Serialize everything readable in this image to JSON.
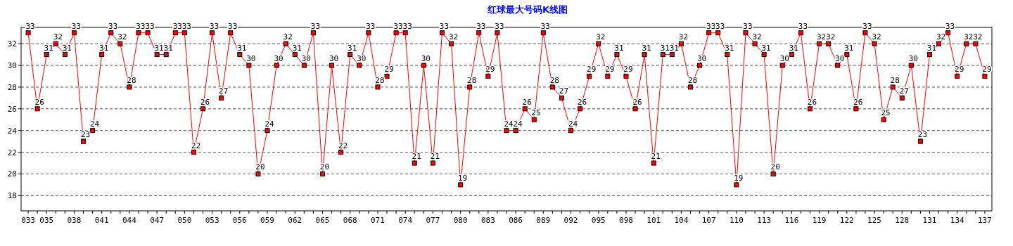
{
  "chart_data": {
    "type": "line",
    "title": "红球最大号码K线图",
    "categories": [
      "033",
      null,
      "035",
      null,
      null,
      "038",
      null,
      null,
      "041",
      null,
      null,
      "044",
      null,
      null,
      "047",
      null,
      null,
      "050",
      null,
      null,
      "053",
      null,
      null,
      "056",
      null,
      null,
      "059",
      null,
      null,
      "062",
      null,
      null,
      "065",
      null,
      null,
      "068",
      null,
      null,
      "071",
      null,
      null,
      "074",
      null,
      null,
      "077",
      null,
      null,
      "080",
      null,
      null,
      "083",
      null,
      null,
      "086",
      null,
      null,
      "089",
      null,
      null,
      "092",
      null,
      null,
      "095",
      null,
      null,
      "098",
      null,
      null,
      "101",
      null,
      null,
      "104",
      null,
      null,
      "107",
      null,
      null,
      "110",
      null,
      null,
      "113",
      null,
      null,
      "116",
      null,
      null,
      "119",
      null,
      null,
      "122",
      null,
      null,
      "125",
      null,
      null,
      "128",
      null,
      null,
      "131",
      null,
      null,
      "134",
      null,
      null,
      "137"
    ],
    "values": [
      33,
      26,
      31,
      32,
      31,
      33,
      23,
      24,
      31,
      33,
      32,
      28,
      33,
      33,
      31,
      31,
      33,
      33,
      22,
      26,
      33,
      27,
      33,
      31,
      30,
      20,
      24,
      30,
      32,
      31,
      30,
      33,
      20,
      30,
      22,
      31,
      30,
      33,
      28,
      29,
      33,
      33,
      21,
      30,
      21,
      33,
      32,
      19,
      28,
      33,
      29,
      33,
      24,
      24,
      26,
      25,
      33,
      28,
      27,
      24,
      26,
      29,
      32,
      29,
      31,
      29,
      26,
      31,
      21,
      31,
      31,
      32,
      28,
      30,
      33,
      33,
      31,
      19,
      33,
      32,
      31,
      20,
      30,
      31,
      33,
      26,
      32,
      32,
      30,
      31,
      26,
      33,
      32,
      25,
      28,
      27,
      30,
      23,
      31,
      32,
      33,
      29,
      32,
      32,
      29
    ],
    "color": "#ff0000",
    "ylim": [
      16.6,
      33.5
    ],
    "yticks": [
      18,
      20,
      22,
      24,
      26,
      28,
      30,
      32
    ],
    "grid": "y",
    "marker": "square",
    "data_labels": true
  }
}
